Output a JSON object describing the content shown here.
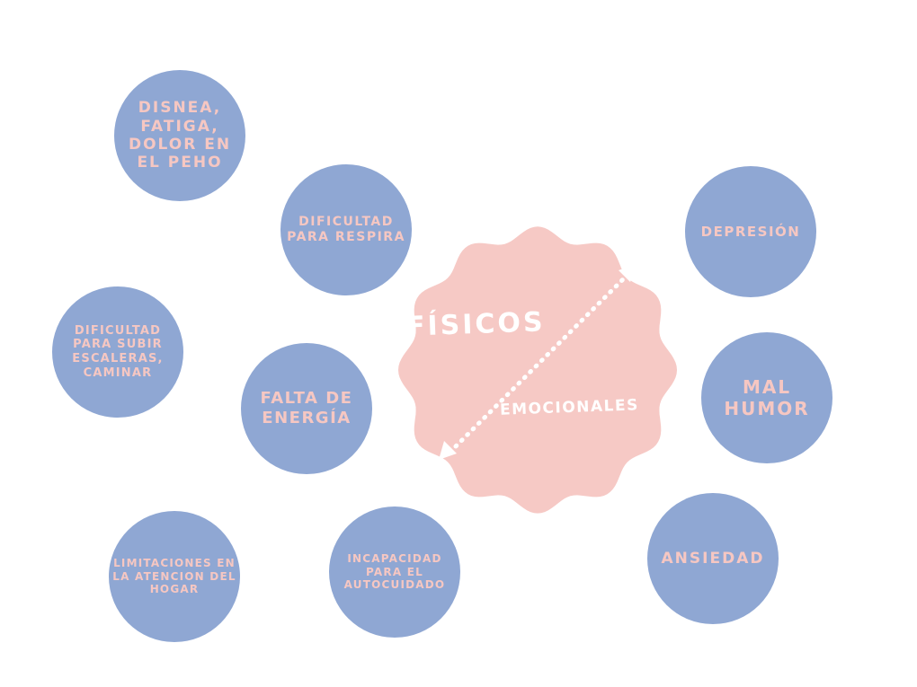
{
  "colors": {
    "bubble_fill": "#8FA7D3",
    "bubble_text": "#F6C7C2",
    "center_fill": "#F6C9C5",
    "center_text": "#FFFFFF",
    "arrow": "#FFFFFF"
  },
  "center": {
    "label_physical": "FÍSICOS",
    "label_emotional": "EMOCIONALES",
    "arrow_icon": "double-headed-arrow-icon"
  },
  "physical_symptoms": [
    "DISNEA, FATIGA, DOLOR EN EL PEHO",
    "DIFICULTAD PARA RESPIRA",
    "DIFICULTAD PARA SUBIR ESCALERAS, CAMINAR",
    "FALTA DE ENERGÍA",
    "LIMITACIONES EN LA ATENCION DEL HOGAR",
    "INCAPACIDAD PARA EL AUTOCUIDADO"
  ],
  "emotional_symptoms": [
    "DEPRESIÓN",
    "MAL HUMOR",
    "ANSIEDAD"
  ]
}
